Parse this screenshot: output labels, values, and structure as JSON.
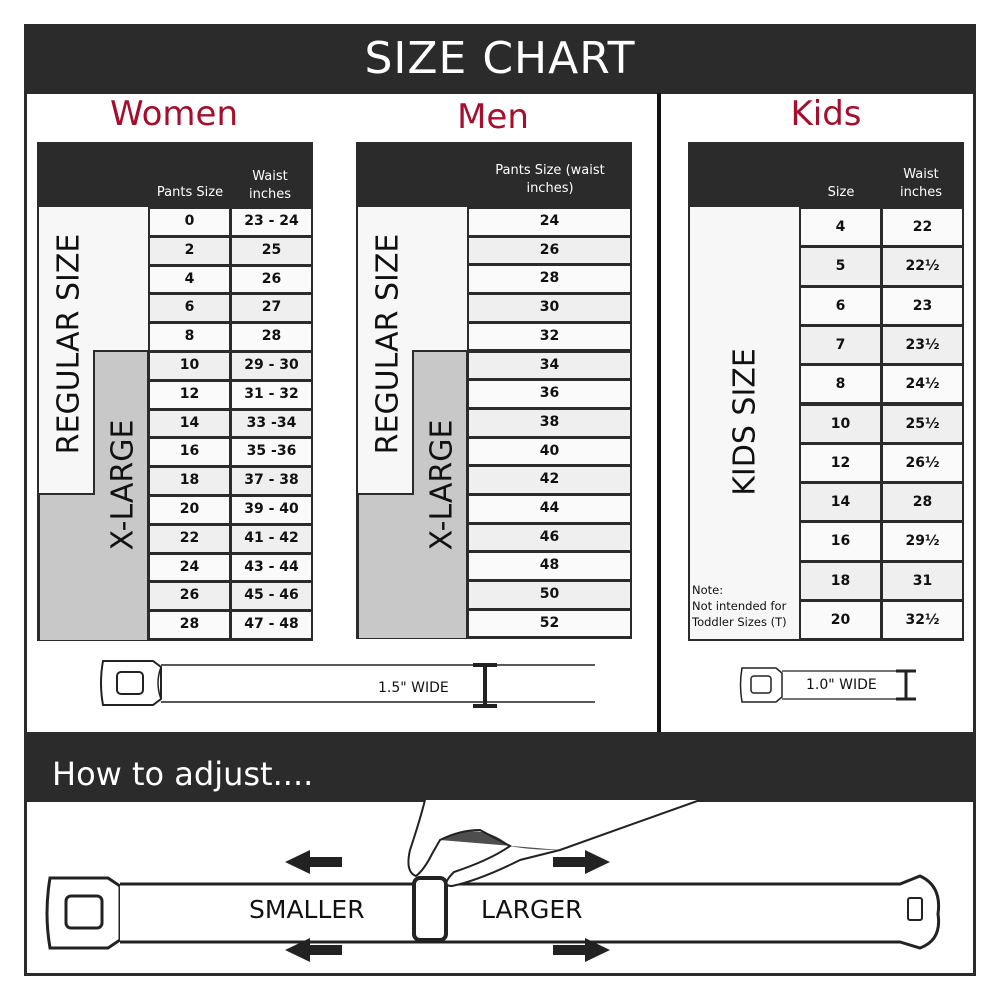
{
  "title": "SIZE CHART",
  "women": {
    "heading": "Women",
    "col1": "Pants Size",
    "col2": "Waist inches",
    "regular_label": "REGULAR SIZE",
    "xlarge_label": "X-LARGE",
    "rows": [
      [
        "0",
        "23 - 24"
      ],
      [
        "2",
        "25"
      ],
      [
        "4",
        "26"
      ],
      [
        "6",
        "27"
      ],
      [
        "8",
        "28"
      ],
      [
        "10",
        "29 - 30"
      ],
      [
        "12",
        "31 - 32"
      ],
      [
        "14",
        "33 -34"
      ],
      [
        "16",
        "35 -36"
      ],
      [
        "18",
        "37 - 38"
      ],
      [
        "20",
        "39 - 40"
      ],
      [
        "22",
        "41 - 42"
      ],
      [
        "24",
        "43 - 44"
      ],
      [
        "26",
        "45 - 46"
      ],
      [
        "28",
        "47 - 48"
      ]
    ],
    "belt_width": "1.5\" WIDE"
  },
  "men": {
    "heading": "Men",
    "col1": "Pants Size (waist inches)",
    "regular_label": "REGULAR SIZE",
    "xlarge_label": "X-LARGE",
    "rows": [
      "24",
      "26",
      "28",
      "30",
      "32",
      "34",
      "36",
      "38",
      "40",
      "42",
      "44",
      "46",
      "48",
      "50",
      "52"
    ]
  },
  "kids": {
    "heading": "Kids",
    "col1": "Size",
    "col2": "Waist inches",
    "label": "KIDS SIZE",
    "note": "Note:\nNot intended for\nToddler Sizes (T)",
    "rows": [
      [
        "4",
        "22"
      ],
      [
        "5",
        "22½"
      ],
      [
        "6",
        "23"
      ],
      [
        "7",
        "23½"
      ],
      [
        "8",
        "24½"
      ],
      [
        "10",
        "25½"
      ],
      [
        "12",
        "26½"
      ],
      [
        "14",
        "28"
      ],
      [
        "16",
        "29½"
      ],
      [
        "18",
        "31"
      ],
      [
        "20",
        "32½"
      ]
    ],
    "belt_width": "1.0\" WIDE"
  },
  "adjust": {
    "title": "How to adjust....",
    "smaller": "SMALLER",
    "larger": "LARGER"
  },
  "colors": {
    "dark": "#2b2b2b",
    "accent": "#a50f2d",
    "xlarge_grey": "#c8c8c8",
    "row_alt": "#efefef"
  }
}
